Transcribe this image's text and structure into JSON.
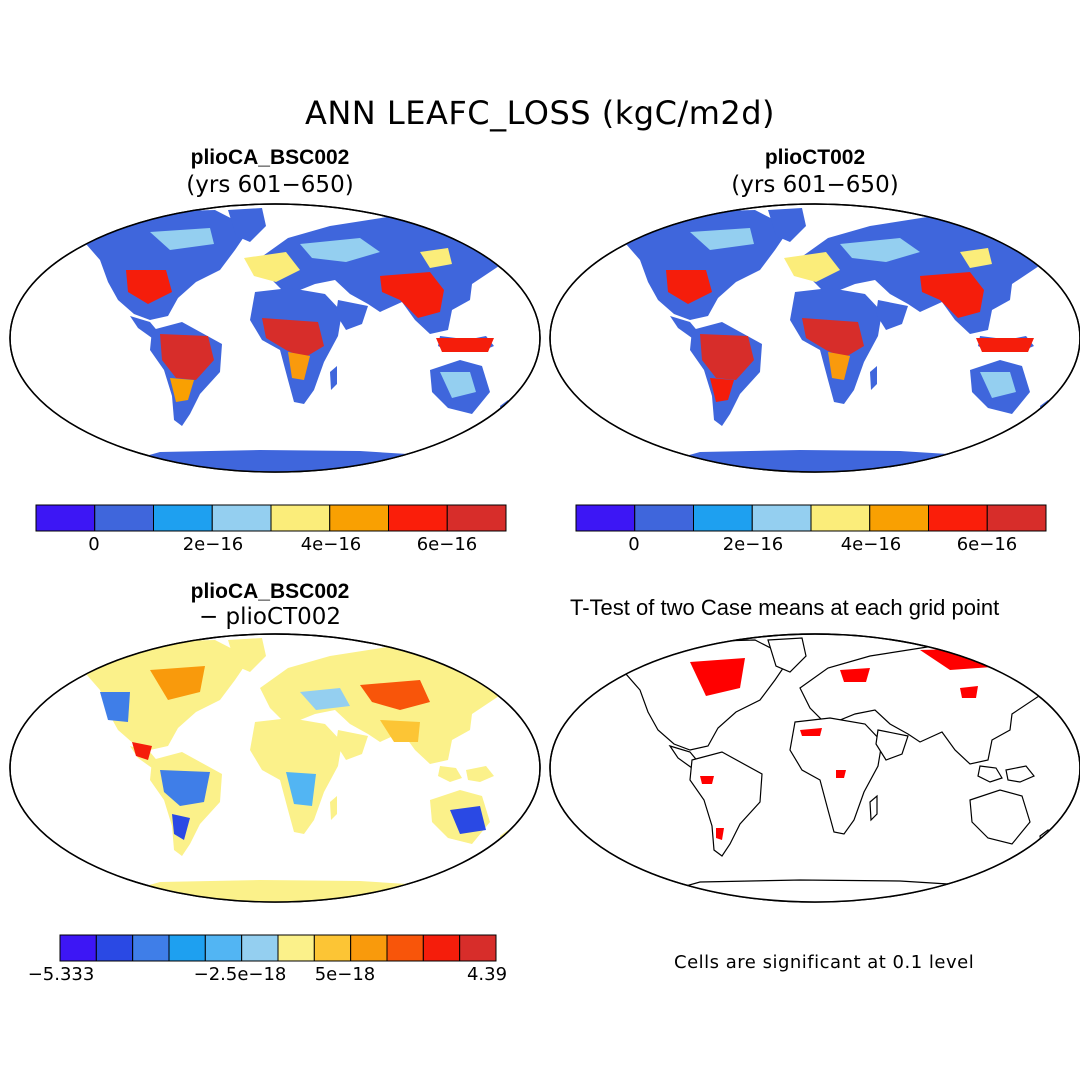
{
  "figure": {
    "title": "ANN LEAFC_LOSS (kgC/m2d)"
  },
  "panels": [
    {
      "title": "plioCA_BSC002",
      "subtitle": "(yrs 601−650)"
    },
    {
      "title": "plioCT002",
      "subtitle": "(yrs 601−650)"
    },
    {
      "title": "plioCA_BSC002",
      "subtitle": "− plioCT002"
    },
    {
      "title": "T-Test of two Case means at each grid point",
      "note": "Cells are significant at 0.1 level"
    }
  ],
  "colorbars": {
    "mean": {
      "colors": [
        "#3d16f5",
        "#3f66dc",
        "#1ea0f0",
        "#94cff0",
        "#fbed7a",
        "#f9a002",
        "#fa1e0a",
        "#d72d2a"
      ],
      "tick_labels": [
        "0",
        "2e−16",
        "4e−16",
        "6e−16"
      ]
    },
    "diff": {
      "colors": [
        "#3d16f5",
        "#2a49e4",
        "#3f7ee8",
        "#1ea0f0",
        "#52b5f3",
        "#94cff0",
        "#fbf18a",
        "#fcc535",
        "#f99a0c",
        "#f8550a",
        "#f51d0b",
        "#d72d2a"
      ],
      "tick_labels": [
        "−5.333",
        "−2.5e−18",
        "5e−18",
        "4.39"
      ]
    }
  },
  "legend_colors": {
    "land_fill_mean": "#3f66dc",
    "land_fill_diff": "#fbf18a",
    "significant": "#ff0000"
  }
}
